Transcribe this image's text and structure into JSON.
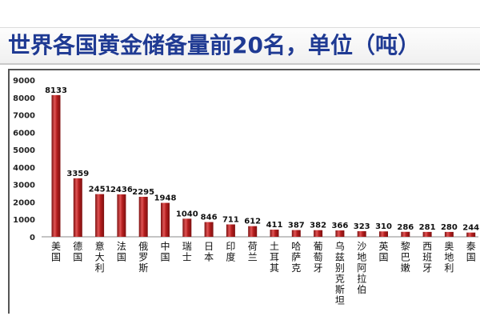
{
  "header": {
    "title": "世界各国黄金储备量前20名，单位（吨）"
  },
  "chart_data": {
    "type": "bar",
    "title": "世界各国黄金储备量前20名，单位（吨）",
    "xlabel": "",
    "ylabel": "",
    "ylim": [
      0,
      9000
    ],
    "yticks": [
      0,
      1000,
      2000,
      3000,
      4000,
      5000,
      6000,
      7000,
      8000,
      9000
    ],
    "grid": false,
    "legend": "none",
    "categories": [
      "美国",
      "德国",
      "意大利",
      "法国",
      "俄罗斯",
      "中国",
      "瑞士",
      "日本",
      "印度",
      "荷兰",
      "土耳其",
      "哈萨克",
      "葡萄牙",
      "乌兹别克斯坦",
      "沙地阿拉伯",
      "英国",
      "黎巴嫩",
      "西班牙",
      "奥地利",
      "泰国"
    ],
    "values": [
      8133,
      3359,
      2451,
      2436,
      2295,
      1948,
      1040,
      846,
      711,
      612,
      411,
      387,
      382,
      366,
      323,
      310,
      286,
      281,
      280,
      244
    ],
    "colors": {
      "bar": "#b41e1e",
      "bar_light": "#e05555",
      "bar_dark": "#7d1010",
      "title": "#1f3a93"
    }
  }
}
